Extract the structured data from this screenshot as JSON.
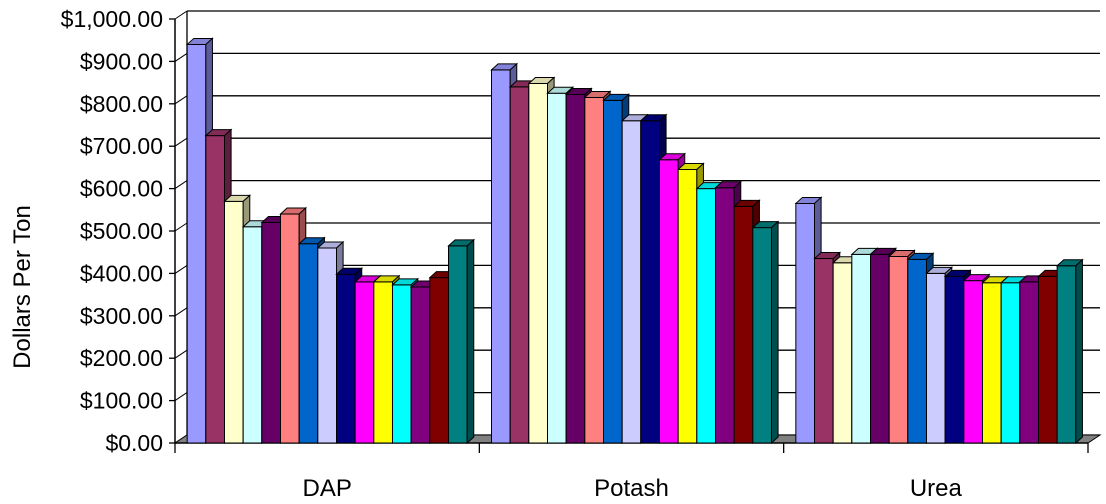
{
  "chart_data": {
    "type": "bar",
    "title": "",
    "xlabel": "",
    "ylabel": "Dollars Per Ton",
    "ylim": [
      0,
      1000
    ],
    "y_ticks": [
      {
        "value": 0,
        "label": "$0.00"
      },
      {
        "value": 100,
        "label": "$100.00"
      },
      {
        "value": 200,
        "label": "$200.00"
      },
      {
        "value": 300,
        "label": "$300.00"
      },
      {
        "value": 400,
        "label": "$400.00"
      },
      {
        "value": 500,
        "label": "$500.00"
      },
      {
        "value": 600,
        "label": "$600.00"
      },
      {
        "value": 700,
        "label": "$700.00"
      },
      {
        "value": 800,
        "label": "$800.00"
      },
      {
        "value": 900,
        "label": "$900.00"
      },
      {
        "value": 1000,
        "label": "$1,000.00"
      }
    ],
    "grid": true,
    "style": "3d-clustered-column",
    "categories": [
      "DAP",
      "Potash",
      "Urea"
    ],
    "series": [
      {
        "color": "#9999FF",
        "values": [
          940,
          880,
          565
        ]
      },
      {
        "color": "#993366",
        "values": [
          725,
          840,
          435
        ]
      },
      {
        "color": "#FFFFCC",
        "values": [
          570,
          848,
          425
        ]
      },
      {
        "color": "#CCFFFF",
        "values": [
          510,
          825,
          445
        ]
      },
      {
        "color": "#660066",
        "values": [
          520,
          822,
          445
        ]
      },
      {
        "color": "#FF8080",
        "values": [
          540,
          815,
          440
        ]
      },
      {
        "color": "#0066CC",
        "values": [
          470,
          808,
          433
        ]
      },
      {
        "color": "#CCCCFF",
        "values": [
          460,
          760,
          400
        ]
      },
      {
        "color": "#000080",
        "values": [
          398,
          760,
          393
        ]
      },
      {
        "color": "#FF00FF",
        "values": [
          380,
          668,
          383
        ]
      },
      {
        "color": "#FFFF00",
        "values": [
          380,
          645,
          378
        ]
      },
      {
        "color": "#00FFFF",
        "values": [
          373,
          600,
          378
        ]
      },
      {
        "color": "#800080",
        "values": [
          368,
          602,
          380
        ]
      },
      {
        "color": "#800000",
        "values": [
          390,
          558,
          393
        ]
      },
      {
        "color": "#008080",
        "values": [
          465,
          508,
          418
        ]
      }
    ]
  }
}
